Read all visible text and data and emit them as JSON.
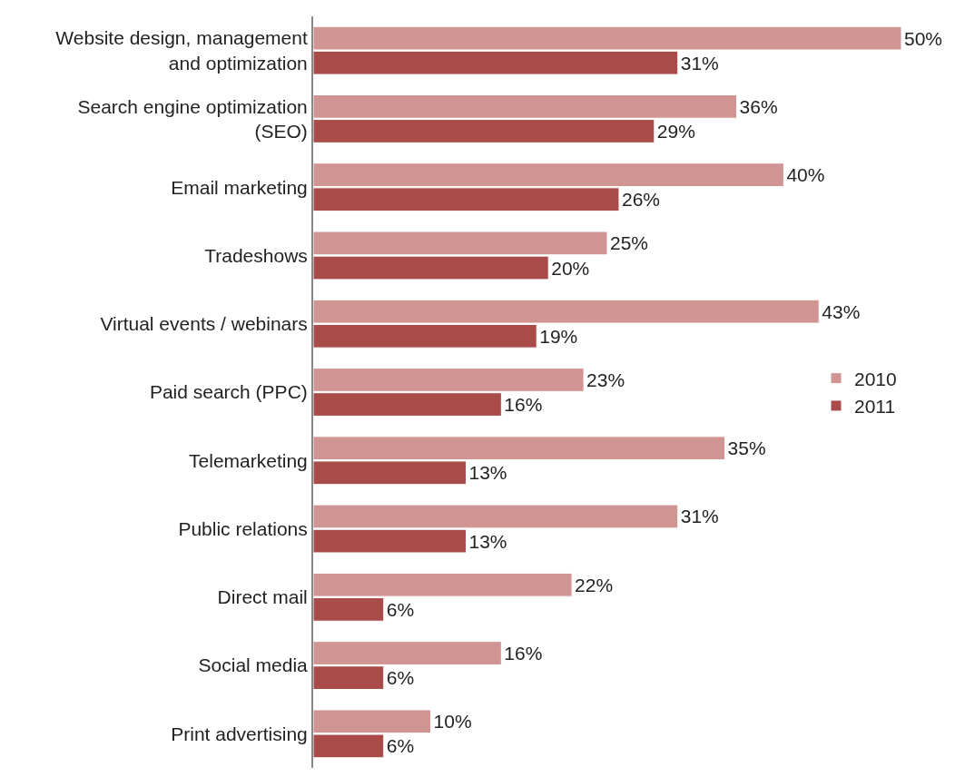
{
  "chart_data": {
    "type": "bar",
    "orientation": "horizontal",
    "categories": [
      "Website design, management\nand optimization",
      "Search engine optimization\n(SEO)",
      "Email marketing",
      "Tradeshows",
      "Virtual events / webinars",
      "Paid search (PPC)",
      "Telemarketing",
      "Public relations",
      "Direct mail",
      "Social media",
      "Print advertising"
    ],
    "series": [
      {
        "name": "2010",
        "color": "#d09593",
        "values": [
          50,
          36,
          40,
          25,
          43,
          23,
          35,
          31,
          22,
          16,
          10
        ],
        "value_labels": [
          "50%",
          "36%",
          "40%",
          "25%",
          "43%",
          "23%",
          "35%",
          "31%",
          "22%",
          "16%",
          "10%"
        ]
      },
      {
        "name": "2011",
        "color": "#a84b49",
        "values": [
          31,
          29,
          26,
          20,
          19,
          16,
          13,
          13,
          6,
          6,
          6
        ],
        "value_labels": [
          "31%",
          "29%",
          "26%",
          "20%",
          "19%",
          "16%",
          "13%",
          "13%",
          "6%",
          "6%",
          "6%"
        ]
      }
    ],
    "legend": "right"
  }
}
